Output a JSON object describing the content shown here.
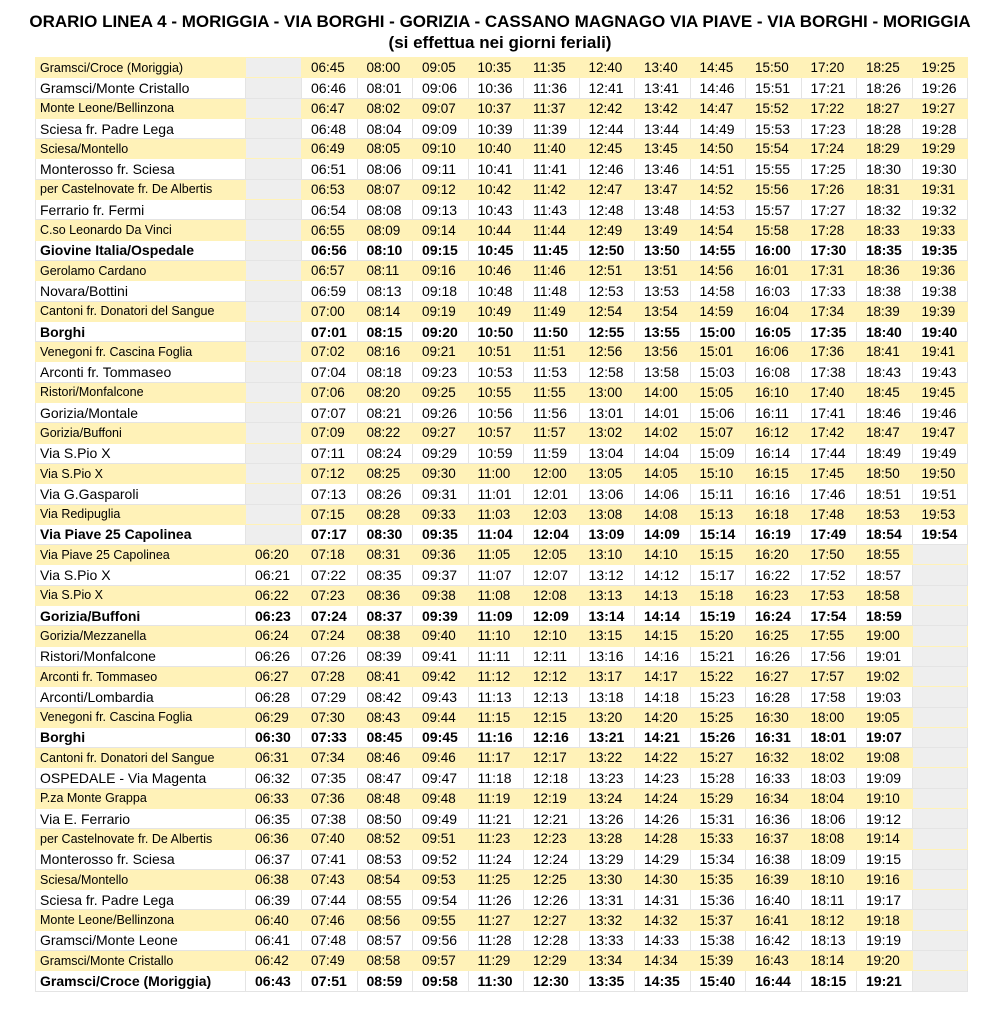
{
  "header": {
    "title": "ORARIO LINEA 4 - MORIGGIA - VIA BORGHI - GORIZIA - CASSANO MAGNAGO VIA PIAVE - VIA BORGHI - MORIGGIA (si effettua nei giorni feriali)"
  },
  "table": {
    "rows": [
      [
        "Gramsci/Croce (Moriggia)",
        null,
        "06:45",
        "08:00",
        "09:05",
        "10:35",
        "11:35",
        "12:40",
        "13:40",
        "14:45",
        "15:50",
        "17:20",
        "18:25",
        "19:25"
      ],
      [
        "Gramsci/Monte Cristallo",
        null,
        "06:46",
        "08:01",
        "09:06",
        "10:36",
        "11:36",
        "12:41",
        "13:41",
        "14:46",
        "15:51",
        "17:21",
        "18:26",
        "19:26"
      ],
      [
        "Monte Leone/Bellinzona",
        null,
        "06:47",
        "08:02",
        "09:07",
        "10:37",
        "11:37",
        "12:42",
        "13:42",
        "14:47",
        "15:52",
        "17:22",
        "18:27",
        "19:27"
      ],
      [
        "Sciesa fr. Padre Lega",
        null,
        "06:48",
        "08:04",
        "09:09",
        "10:39",
        "11:39",
        "12:44",
        "13:44",
        "14:49",
        "15:53",
        "17:23",
        "18:28",
        "19:28"
      ],
      [
        "Sciesa/Montello",
        null,
        "06:49",
        "08:05",
        "09:10",
        "10:40",
        "11:40",
        "12:45",
        "13:45",
        "14:50",
        "15:54",
        "17:24",
        "18:29",
        "19:29"
      ],
      [
        "Monterosso fr. Sciesa",
        null,
        "06:51",
        "08:06",
        "09:11",
        "10:41",
        "11:41",
        "12:46",
        "13:46",
        "14:51",
        "15:55",
        "17:25",
        "18:30",
        "19:30"
      ],
      [
        "per Castelnovate fr. De Albertis",
        null,
        "06:53",
        "08:07",
        "09:12",
        "10:42",
        "11:42",
        "12:47",
        "13:47",
        "14:52",
        "15:56",
        "17:26",
        "18:31",
        "19:31"
      ],
      [
        "Ferrario fr. Fermi",
        null,
        "06:54",
        "08:08",
        "09:13",
        "10:43",
        "11:43",
        "12:48",
        "13:48",
        "14:53",
        "15:57",
        "17:27",
        "18:32",
        "19:32"
      ],
      [
        "C.so Leonardo Da Vinci",
        null,
        "06:55",
        "08:09",
        "09:14",
        "10:44",
        "11:44",
        "12:49",
        "13:49",
        "14:54",
        "15:58",
        "17:28",
        "18:33",
        "19:33"
      ],
      [
        "Giovine Italia/Ospedale",
        null,
        "06:56",
        "08:10",
        "09:15",
        "10:45",
        "11:45",
        "12:50",
        "13:50",
        "14:55",
        "16:00",
        "17:30",
        "18:35",
        "19:35"
      ],
      [
        "Gerolamo Cardano",
        null,
        "06:57",
        "08:11",
        "09:16",
        "10:46",
        "11:46",
        "12:51",
        "13:51",
        "14:56",
        "16:01",
        "17:31",
        "18:36",
        "19:36"
      ],
      [
        "Novara/Bottini",
        null,
        "06:59",
        "08:13",
        "09:18",
        "10:48",
        "11:48",
        "12:53",
        "13:53",
        "14:58",
        "16:03",
        "17:33",
        "18:38",
        "19:38"
      ],
      [
        "Cantoni fr. Donatori del Sangue",
        null,
        "07:00",
        "08:14",
        "09:19",
        "10:49",
        "11:49",
        "12:54",
        "13:54",
        "14:59",
        "16:04",
        "17:34",
        "18:39",
        "19:39"
      ],
      [
        "Borghi",
        null,
        "07:01",
        "08:15",
        "09:20",
        "10:50",
        "11:50",
        "12:55",
        "13:55",
        "15:00",
        "16:05",
        "17:35",
        "18:40",
        "19:40"
      ],
      [
        "Venegoni fr. Cascina Foglia",
        null,
        "07:02",
        "08:16",
        "09:21",
        "10:51",
        "11:51",
        "12:56",
        "13:56",
        "15:01",
        "16:06",
        "17:36",
        "18:41",
        "19:41"
      ],
      [
        "Arconti fr. Tommaseo",
        null,
        "07:04",
        "08:18",
        "09:23",
        "10:53",
        "11:53",
        "12:58",
        "13:58",
        "15:03",
        "16:08",
        "17:38",
        "18:43",
        "19:43"
      ],
      [
        "Ristori/Monfalcone",
        null,
        "07:06",
        "08:20",
        "09:25",
        "10:55",
        "11:55",
        "13:00",
        "14:00",
        "15:05",
        "16:10",
        "17:40",
        "18:45",
        "19:45"
      ],
      [
        "Gorizia/Montale",
        null,
        "07:07",
        "08:21",
        "09:26",
        "10:56",
        "11:56",
        "13:01",
        "14:01",
        "15:06",
        "16:11",
        "17:41",
        "18:46",
        "19:46"
      ],
      [
        "Gorizia/Buffoni",
        null,
        "07:09",
        "08:22",
        "09:27",
        "10:57",
        "11:57",
        "13:02",
        "14:02",
        "15:07",
        "16:12",
        "17:42",
        "18:47",
        "19:47"
      ],
      [
        "Via S.Pio X",
        null,
        "07:11",
        "08:24",
        "09:29",
        "10:59",
        "11:59",
        "13:04",
        "14:04",
        "15:09",
        "16:14",
        "17:44",
        "18:49",
        "19:49"
      ],
      [
        "Via S.Pio X",
        null,
        "07:12",
        "08:25",
        "09:30",
        "11:00",
        "12:00",
        "13:05",
        "14:05",
        "15:10",
        "16:15",
        "17:45",
        "18:50",
        "19:50"
      ],
      [
        "Via G.Gasparoli",
        null,
        "07:13",
        "08:26",
        "09:31",
        "11:01",
        "12:01",
        "13:06",
        "14:06",
        "15:11",
        "16:16",
        "17:46",
        "18:51",
        "19:51"
      ],
      [
        "Via Redipuglia",
        null,
        "07:15",
        "08:28",
        "09:33",
        "11:03",
        "12:03",
        "13:08",
        "14:08",
        "15:13",
        "16:18",
        "17:48",
        "18:53",
        "19:53"
      ],
      [
        "Via Piave 25 Capolinea",
        null,
        "07:17",
        "08:30",
        "09:35",
        "11:04",
        "12:04",
        "13:09",
        "14:09",
        "15:14",
        "16:19",
        "17:49",
        "18:54",
        "19:54"
      ],
      [
        "Via Piave 25 Capolinea",
        "06:20",
        "07:18",
        "08:31",
        "09:36",
        "11:05",
        "12:05",
        "13:10",
        "14:10",
        "15:15",
        "16:20",
        "17:50",
        "18:55",
        null
      ],
      [
        "Via S.Pio X",
        "06:21",
        "07:22",
        "08:35",
        "09:37",
        "11:07",
        "12:07",
        "13:12",
        "14:12",
        "15:17",
        "16:22",
        "17:52",
        "18:57",
        null
      ],
      [
        "Via S.Pio X",
        "06:22",
        "07:23",
        "08:36",
        "09:38",
        "11:08",
        "12:08",
        "13:13",
        "14:13",
        "15:18",
        "16:23",
        "17:53",
        "18:58",
        null
      ],
      [
        "Gorizia/Buffoni",
        "06:23",
        "07:24",
        "08:37",
        "09:39",
        "11:09",
        "12:09",
        "13:14",
        "14:14",
        "15:19",
        "16:24",
        "17:54",
        "18:59",
        null
      ],
      [
        "Gorizia/Mezzanella",
        "06:24",
        "07:24",
        "08:38",
        "09:40",
        "11:10",
        "12:10",
        "13:15",
        "14:15",
        "15:20",
        "16:25",
        "17:55",
        "19:00",
        null
      ],
      [
        "Ristori/Monfalcone",
        "06:26",
        "07:26",
        "08:39",
        "09:41",
        "11:11",
        "12:11",
        "13:16",
        "14:16",
        "15:21",
        "16:26",
        "17:56",
        "19:01",
        null
      ],
      [
        "Arconti fr. Tommaseo",
        "06:27",
        "07:28",
        "08:41",
        "09:42",
        "11:12",
        "12:12",
        "13:17",
        "14:17",
        "15:22",
        "16:27",
        "17:57",
        "19:02",
        null
      ],
      [
        "Arconti/Lombardia",
        "06:28",
        "07:29",
        "08:42",
        "09:43",
        "11:13",
        "12:13",
        "13:18",
        "14:18",
        "15:23",
        "16:28",
        "17:58",
        "19:03",
        null
      ],
      [
        "Venegoni fr. Cascina Foglia",
        "06:29",
        "07:30",
        "08:43",
        "09:44",
        "11:15",
        "12:15",
        "13:20",
        "14:20",
        "15:25",
        "16:30",
        "18:00",
        "19:05",
        null
      ],
      [
        "Borghi",
        "06:30",
        "07:33",
        "08:45",
        "09:45",
        "11:16",
        "12:16",
        "13:21",
        "14:21",
        "15:26",
        "16:31",
        "18:01",
        "19:07",
        null
      ],
      [
        "Cantoni fr. Donatori del Sangue",
        "06:31",
        "07:34",
        "08:46",
        "09:46",
        "11:17",
        "12:17",
        "13:22",
        "14:22",
        "15:27",
        "16:32",
        "18:02",
        "19:08",
        null
      ],
      [
        "OSPEDALE - Via Magenta",
        "06:32",
        "07:35",
        "08:47",
        "09:47",
        "11:18",
        "12:18",
        "13:23",
        "14:23",
        "15:28",
        "16:33",
        "18:03",
        "19:09",
        null
      ],
      [
        "P.za Monte Grappa",
        "06:33",
        "07:36",
        "08:48",
        "09:48",
        "11:19",
        "12:19",
        "13:24",
        "14:24",
        "15:29",
        "16:34",
        "18:04",
        "19:10",
        null
      ],
      [
        "Via E. Ferrario",
        "06:35",
        "07:38",
        "08:50",
        "09:49",
        "11:21",
        "12:21",
        "13:26",
        "14:26",
        "15:31",
        "16:36",
        "18:06",
        "19:12",
        null
      ],
      [
        "per Castelnovate fr. De Albertis",
        "06:36",
        "07:40",
        "08:52",
        "09:51",
        "11:23",
        "12:23",
        "13:28",
        "14:28",
        "15:33",
        "16:37",
        "18:08",
        "19:14",
        null
      ],
      [
        "Monterosso fr. Sciesa",
        "06:37",
        "07:41",
        "08:53",
        "09:52",
        "11:24",
        "12:24",
        "13:29",
        "14:29",
        "15:34",
        "16:38",
        "18:09",
        "19:15",
        null
      ],
      [
        "Sciesa/Montello",
        "06:38",
        "07:43",
        "08:54",
        "09:53",
        "11:25",
        "12:25",
        "13:30",
        "14:30",
        "15:35",
        "16:39",
        "18:10",
        "19:16",
        null
      ],
      [
        "Sciesa fr. Padre Lega",
        "06:39",
        "07:44",
        "08:55",
        "09:54",
        "11:26",
        "12:26",
        "13:31",
        "14:31",
        "15:36",
        "16:40",
        "18:11",
        "19:17",
        null
      ],
      [
        "Monte Leone/Bellinzona",
        "06:40",
        "07:46",
        "08:56",
        "09:55",
        "11:27",
        "12:27",
        "13:32",
        "14:32",
        "15:37",
        "16:41",
        "18:12",
        "19:18",
        null
      ],
      [
        "Gramsci/Monte Leone",
        "06:41",
        "07:48",
        "08:57",
        "09:56",
        "11:28",
        "12:28",
        "13:33",
        "14:33",
        "15:38",
        "16:42",
        "18:13",
        "19:19",
        null
      ],
      [
        "Gramsci/Monte Cristallo",
        "06:42",
        "07:49",
        "08:58",
        "09:57",
        "11:29",
        "12:29",
        "13:34",
        "14:34",
        "15:39",
        "16:43",
        "18:14",
        "19:20",
        null
      ],
      [
        "Gramsci/Croce (Moriggia)",
        "06:43",
        "07:51",
        "08:59",
        "09:58",
        "11:30",
        "12:30",
        "13:35",
        "14:35",
        "15:40",
        "16:44",
        "18:15",
        "19:21",
        null
      ]
    ]
  }
}
